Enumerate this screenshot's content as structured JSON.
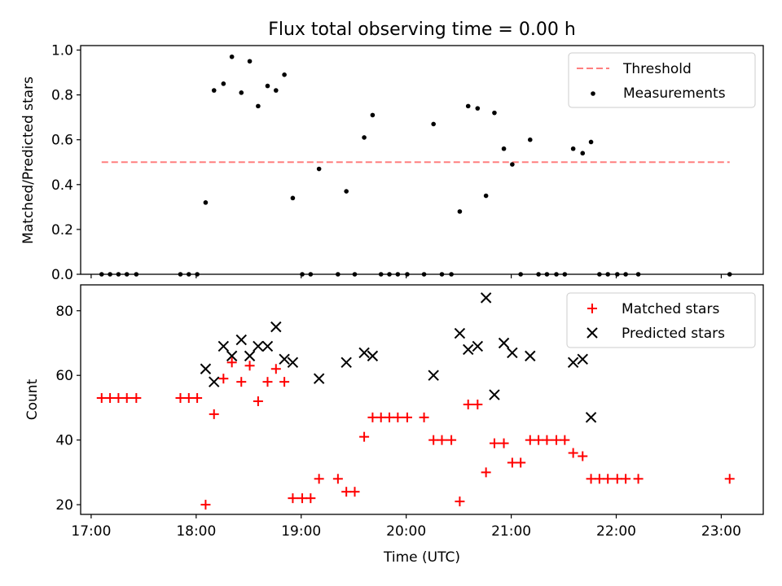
{
  "chart_data": [
    {
      "type": "scatter",
      "title": "Flux total observing time = 0.00 h",
      "xlabel": "",
      "ylabel": "Matched/Predicted stars",
      "xlim": [
        16.9,
        23.4
      ],
      "ylim": [
        0.0,
        1.02
      ],
      "xticks": [
        17,
        18,
        19,
        20,
        21,
        22,
        23
      ],
      "yticks": [
        0.0,
        0.2,
        0.4,
        0.6,
        0.8,
        1.0
      ],
      "ytick_labels": [
        "0.0",
        "0.2",
        "0.4",
        "0.6",
        "0.8",
        "1.0"
      ],
      "legend_position": "top-right",
      "threshold": {
        "name": "Threshold",
        "value": 0.5,
        "x_range": [
          17.1,
          23.08
        ],
        "color": "#ff7f7f"
      },
      "series": [
        {
          "name": "Measurements",
          "color": "#000000",
          "points": [
            [
              17.1,
              0.0
            ],
            [
              17.18,
              0.0
            ],
            [
              17.26,
              0.0
            ],
            [
              17.34,
              0.0
            ],
            [
              17.43,
              0.0
            ],
            [
              17.85,
              0.0
            ],
            [
              17.93,
              0.0
            ],
            [
              18.01,
              0.0
            ],
            [
              18.09,
              0.32
            ],
            [
              18.17,
              0.82
            ],
            [
              18.26,
              0.85
            ],
            [
              18.34,
              0.97
            ],
            [
              18.43,
              0.81
            ],
            [
              18.51,
              0.95
            ],
            [
              18.59,
              0.75
            ],
            [
              18.68,
              0.84
            ],
            [
              18.76,
              0.82
            ],
            [
              18.84,
              0.89
            ],
            [
              18.92,
              0.34
            ],
            [
              19.01,
              0.0
            ],
            [
              19.09,
              0.0
            ],
            [
              19.17,
              0.47
            ],
            [
              19.35,
              0.0
            ],
            [
              19.43,
              0.37
            ],
            [
              19.51,
              0.0
            ],
            [
              19.6,
              0.61
            ],
            [
              19.68,
              0.71
            ],
            [
              19.76,
              0.0
            ],
            [
              19.84,
              0.0
            ],
            [
              19.92,
              0.0
            ],
            [
              20.01,
              0.0
            ],
            [
              20.17,
              0.0
            ],
            [
              20.26,
              0.67
            ],
            [
              20.34,
              0.0
            ],
            [
              20.43,
              0.0
            ],
            [
              20.51,
              0.28
            ],
            [
              20.59,
              0.75
            ],
            [
              20.68,
              0.74
            ],
            [
              20.76,
              0.35
            ],
            [
              20.84,
              0.72
            ],
            [
              20.93,
              0.56
            ],
            [
              21.01,
              0.49
            ],
            [
              21.09,
              0.0
            ],
            [
              21.18,
              0.6
            ],
            [
              21.26,
              0.0
            ],
            [
              21.34,
              0.0
            ],
            [
              21.43,
              0.0
            ],
            [
              21.51,
              0.0
            ],
            [
              21.59,
              0.56
            ],
            [
              21.68,
              0.54
            ],
            [
              21.76,
              0.59
            ],
            [
              21.84,
              0.0
            ],
            [
              21.92,
              0.0
            ],
            [
              22.01,
              0.0
            ],
            [
              22.09,
              0.0
            ],
            [
              22.21,
              0.0
            ],
            [
              23.08,
              0.0
            ]
          ]
        }
      ]
    },
    {
      "type": "scatter",
      "title": "",
      "xlabel": "Time (UTC)",
      "ylabel": "Count",
      "xlim": [
        16.9,
        23.4
      ],
      "ylim": [
        17,
        88
      ],
      "xticks": [
        17,
        18,
        19,
        20,
        21,
        22,
        23
      ],
      "xtick_labels": [
        "17:00",
        "18:00",
        "19:00",
        "20:00",
        "21:00",
        "22:00",
        "23:00"
      ],
      "yticks": [
        20,
        40,
        60,
        80
      ],
      "ytick_labels": [
        "20",
        "40",
        "60",
        "80"
      ],
      "legend_position": "top-right",
      "series": [
        {
          "name": "Matched stars",
          "marker": "plus",
          "color": "#ff0000",
          "points": [
            [
              17.1,
              53
            ],
            [
              17.18,
              53
            ],
            [
              17.26,
              53
            ],
            [
              17.34,
              53
            ],
            [
              17.43,
              53
            ],
            [
              17.85,
              53
            ],
            [
              17.93,
              53
            ],
            [
              18.01,
              53
            ],
            [
              18.09,
              20
            ],
            [
              18.17,
              48
            ],
            [
              18.26,
              59
            ],
            [
              18.34,
              64
            ],
            [
              18.43,
              58
            ],
            [
              18.51,
              63
            ],
            [
              18.59,
              52
            ],
            [
              18.68,
              58
            ],
            [
              18.76,
              62
            ],
            [
              18.84,
              58
            ],
            [
              18.92,
              22
            ],
            [
              19.01,
              22
            ],
            [
              19.09,
              22
            ],
            [
              19.17,
              28
            ],
            [
              19.35,
              28
            ],
            [
              19.43,
              24
            ],
            [
              19.51,
              24
            ],
            [
              19.6,
              41
            ],
            [
              19.68,
              47
            ],
            [
              19.76,
              47
            ],
            [
              19.84,
              47
            ],
            [
              19.92,
              47
            ],
            [
              20.01,
              47
            ],
            [
              20.17,
              47
            ],
            [
              20.26,
              40
            ],
            [
              20.34,
              40
            ],
            [
              20.43,
              40
            ],
            [
              20.51,
              21
            ],
            [
              20.59,
              51
            ],
            [
              20.68,
              51
            ],
            [
              20.76,
              30
            ],
            [
              20.84,
              39
            ],
            [
              20.93,
              39
            ],
            [
              21.01,
              33
            ],
            [
              21.09,
              33
            ],
            [
              21.18,
              40
            ],
            [
              21.26,
              40
            ],
            [
              21.34,
              40
            ],
            [
              21.43,
              40
            ],
            [
              21.51,
              40
            ],
            [
              21.59,
              36
            ],
            [
              21.68,
              35
            ],
            [
              21.76,
              28
            ],
            [
              21.84,
              28
            ],
            [
              21.92,
              28
            ],
            [
              22.01,
              28
            ],
            [
              22.09,
              28
            ],
            [
              22.21,
              28
            ],
            [
              23.08,
              28
            ]
          ]
        },
        {
          "name": "Predicted stars",
          "marker": "x",
          "color": "#000000",
          "points": [
            [
              18.09,
              62
            ],
            [
              18.17,
              58
            ],
            [
              18.26,
              69
            ],
            [
              18.34,
              66
            ],
            [
              18.43,
              71
            ],
            [
              18.51,
              66
            ],
            [
              18.59,
              69
            ],
            [
              18.68,
              69
            ],
            [
              18.76,
              75
            ],
            [
              18.84,
              65
            ],
            [
              18.92,
              64
            ],
            [
              19.17,
              59
            ],
            [
              19.43,
              64
            ],
            [
              19.6,
              67
            ],
            [
              19.68,
              66
            ],
            [
              20.26,
              60
            ],
            [
              20.51,
              73
            ],
            [
              20.59,
              68
            ],
            [
              20.68,
              69
            ],
            [
              20.76,
              84
            ],
            [
              20.84,
              54
            ],
            [
              20.93,
              70
            ],
            [
              21.01,
              67
            ],
            [
              21.18,
              66
            ],
            [
              21.59,
              64
            ],
            [
              21.68,
              65
            ],
            [
              21.76,
              47
            ]
          ]
        }
      ]
    }
  ]
}
